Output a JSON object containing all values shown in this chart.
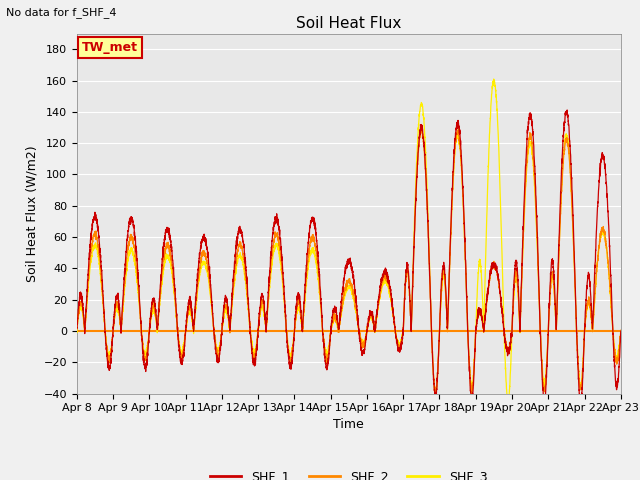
{
  "title": "Soil Heat Flux",
  "note": "No data for f_SHF_4",
  "ylabel": "Soil Heat Flux (W/m2)",
  "xlabel": "Time",
  "ylim": [
    -40,
    190
  ],
  "yticks": [
    -40,
    -20,
    0,
    20,
    40,
    60,
    80,
    100,
    120,
    140,
    160,
    180
  ],
  "legend_box_label": "TW_met",
  "legend_box_color": "#ffff99",
  "legend_box_border": "#cc0000",
  "series_colors": [
    "#cc0000",
    "#ff8800",
    "#ffee00"
  ],
  "series_labels": [
    "SHF_1",
    "SHF_2",
    "SHF_3"
  ],
  "background_color": "#e8e8e8",
  "plot_bg_color": "#f0f0f0",
  "n_days": 15,
  "start_day": 8,
  "figsize": [
    6.4,
    4.8
  ],
  "dpi": 100
}
